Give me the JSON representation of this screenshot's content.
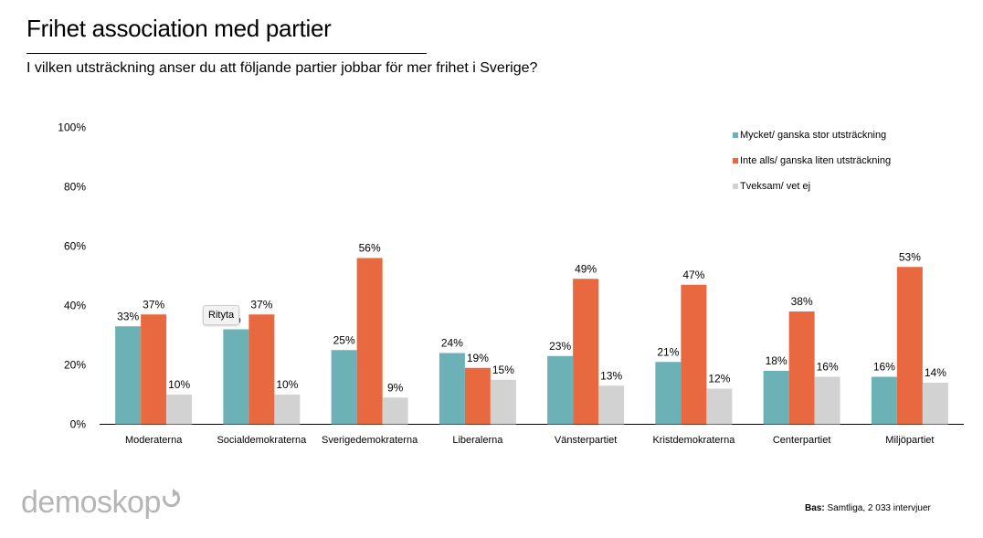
{
  "page": {
    "title": "Frihet association med partier",
    "subtitle": "I vilken utsträckning anser du att följande partier jobbar för mer frihet i Sverige?",
    "tooltip": "Rityta",
    "logo_text": "demoskop",
    "footnote_label": "Bas:",
    "footnote_text": " Samtliga, 2 033 intervjuer"
  },
  "colors": {
    "series": [
      "#6bb1b5",
      "#e8693f",
      "#d3d2d2"
    ],
    "axis": "#000000",
    "logo": "#b5b5b5"
  },
  "chart_data": {
    "type": "bar",
    "title": "",
    "xlabel": "",
    "ylabel": "",
    "ylim": [
      0,
      100
    ],
    "yticks": [
      0,
      20,
      40,
      60,
      80,
      100
    ],
    "ytick_labels": [
      "0%",
      "20%",
      "40%",
      "60%",
      "80%",
      "100%"
    ],
    "grid": false,
    "legend_position": "top-right",
    "categories": [
      "Moderaterna",
      "Socialdemokraterna",
      "Sverigedemokraterna",
      "Liberalerna",
      "Vänsterpartiet",
      "Kristdemokraterna",
      "Centerpartiet",
      "Miljöpartiet"
    ],
    "series": [
      {
        "name": "Mycket/ ganska stor utsträckning",
        "values": [
          33,
          32,
          25,
          24,
          23,
          21,
          18,
          16
        ],
        "labels": [
          "33%",
          "%",
          "25%",
          "24%",
          "23%",
          "21%",
          "18%",
          "16%"
        ]
      },
      {
        "name": "Inte alls/ ganska liten utsträckning",
        "values": [
          37,
          37,
          56,
          19,
          49,
          47,
          38,
          53
        ],
        "labels": [
          "37%",
          "37%",
          "56%",
          "19%",
          "49%",
          "47%",
          "38%",
          "53%"
        ]
      },
      {
        "name": "Tveksam/ vet ej",
        "values": [
          10,
          10,
          9,
          15,
          13,
          12,
          16,
          14
        ],
        "labels": [
          "10%",
          "10%",
          "9%",
          "15%",
          "13%",
          "12%",
          "16%",
          "14%"
        ]
      }
    ]
  }
}
